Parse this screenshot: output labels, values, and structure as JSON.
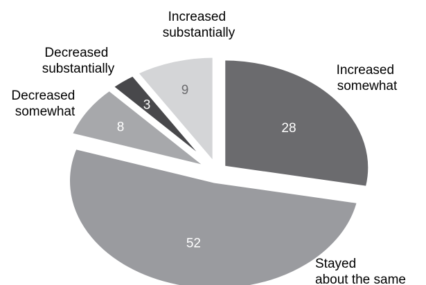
{
  "chart_data": {
    "type": "pie",
    "title": "",
    "slices": [
      {
        "label_lines": [
          "Increased",
          "somewhat"
        ],
        "value": 28,
        "color": "#6b6b6e",
        "text_color": "#ffffff"
      },
      {
        "label_lines": [
          "Stayed",
          "about the same"
        ],
        "value": 52,
        "color": "#9a9b9f",
        "text_color": "#ffffff"
      },
      {
        "label_lines": [
          "Decreased",
          "somewhat"
        ],
        "value": 8,
        "color": "#a7a8ab",
        "text_color": "#ffffff"
      },
      {
        "label_lines": [
          "Decreased",
          "substantially"
        ],
        "value": 3,
        "color": "#48484b",
        "text_color": "#ffffff"
      },
      {
        "label_lines": [
          "Increased",
          "substantially"
        ],
        "value": 9,
        "color": "#d4d5d7",
        "text_color": "#6b6b6e"
      }
    ]
  }
}
